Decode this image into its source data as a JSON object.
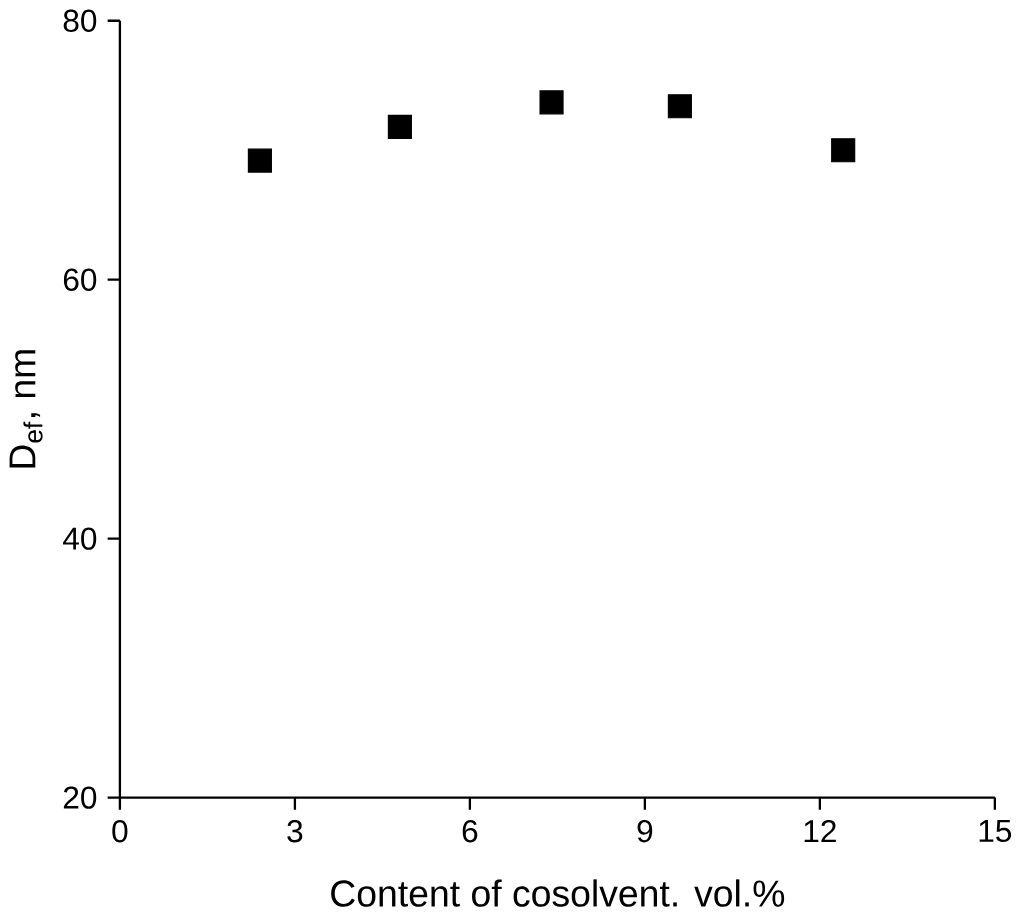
{
  "chart_data": {
    "type": "scatter",
    "xlabel": "Content of cosolvent. vol.%",
    "ylabel": "D$_{ef}$, nm",
    "x": [
      2.4,
      4.8,
      7.4,
      9.6,
      12.4
    ],
    "values": [
      69.2,
      71.8,
      73.7,
      73.4,
      70.0
    ],
    "color": "#000000",
    "marker": "square",
    "grid": false,
    "xlim": [
      0,
      15
    ],
    "ylim": [
      20,
      80
    ],
    "xticks": [
      0,
      3,
      6,
      9,
      12,
      15
    ],
    "yticks": [
      20,
      40,
      60,
      80
    ]
  }
}
